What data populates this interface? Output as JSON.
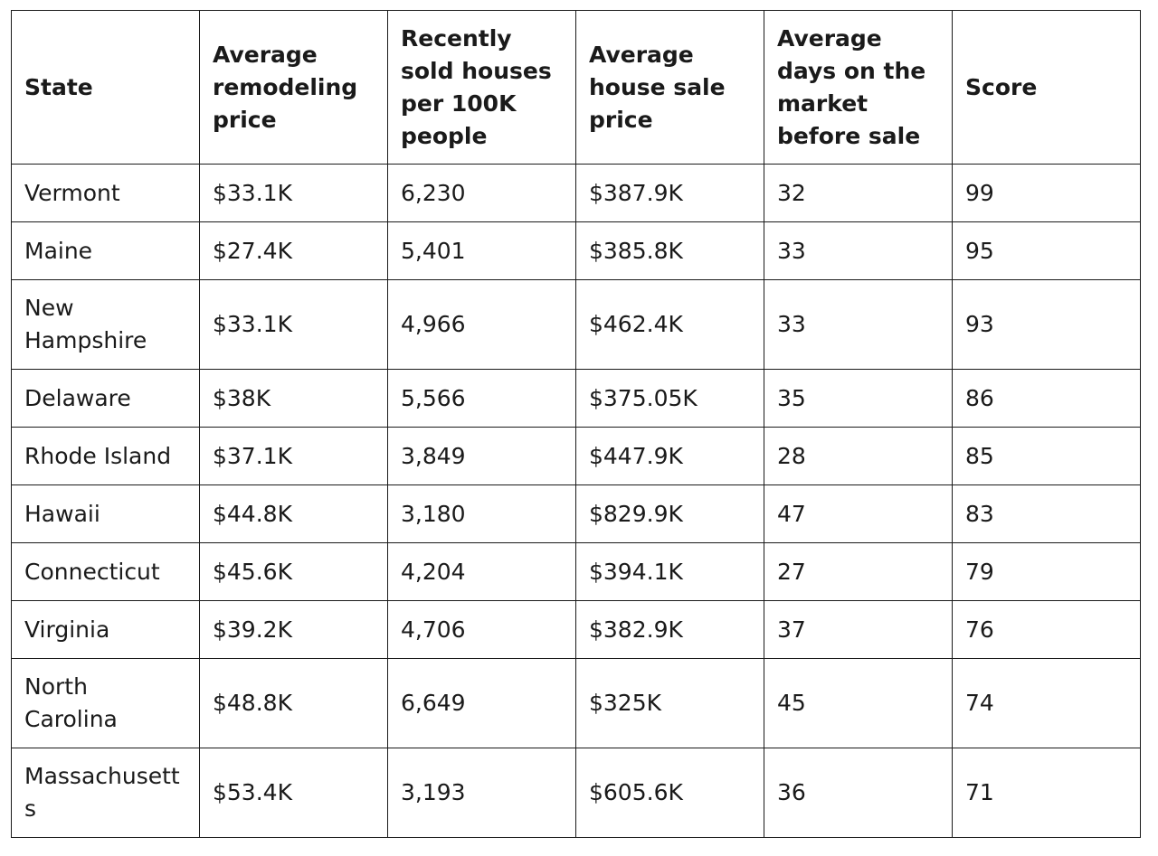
{
  "chart_data": {
    "type": "table",
    "columns": [
      "State",
      "Average remodeling price",
      "Recently sold houses per 100K people",
      "Average house sale price",
      "Average days on the market before sale",
      "Score"
    ],
    "rows": [
      [
        "Vermont",
        "$33.1K",
        "6,230",
        "$387.9K",
        "32",
        "99"
      ],
      [
        "Maine",
        "$27.4K",
        "5,401",
        "$385.8K",
        "33",
        "95"
      ],
      [
        "New Hampshire",
        "$33.1K",
        "4,966",
        "$462.4K",
        "33",
        "93"
      ],
      [
        "Delaware",
        "$38K",
        "5,566",
        "$375.05K",
        "35",
        "86"
      ],
      [
        "Rhode Island",
        "$37.1K",
        "3,849",
        "$447.9K",
        "28",
        "85"
      ],
      [
        "Hawaii",
        "$44.8K",
        "3,180",
        "$829.9K",
        "47",
        "83"
      ],
      [
        "Connecticut",
        "$45.6K",
        "4,204",
        "$394.1K",
        "27",
        "79"
      ],
      [
        "Virginia",
        "$39.2K",
        "4,706",
        "$382.9K",
        "37",
        "76"
      ],
      [
        "North Carolina",
        "$48.8K",
        "6,649",
        "$325K",
        "45",
        "74"
      ],
      [
        "Massachusetts",
        "$53.4K",
        "3,193",
        "$605.6K",
        "36",
        "71"
      ]
    ]
  }
}
